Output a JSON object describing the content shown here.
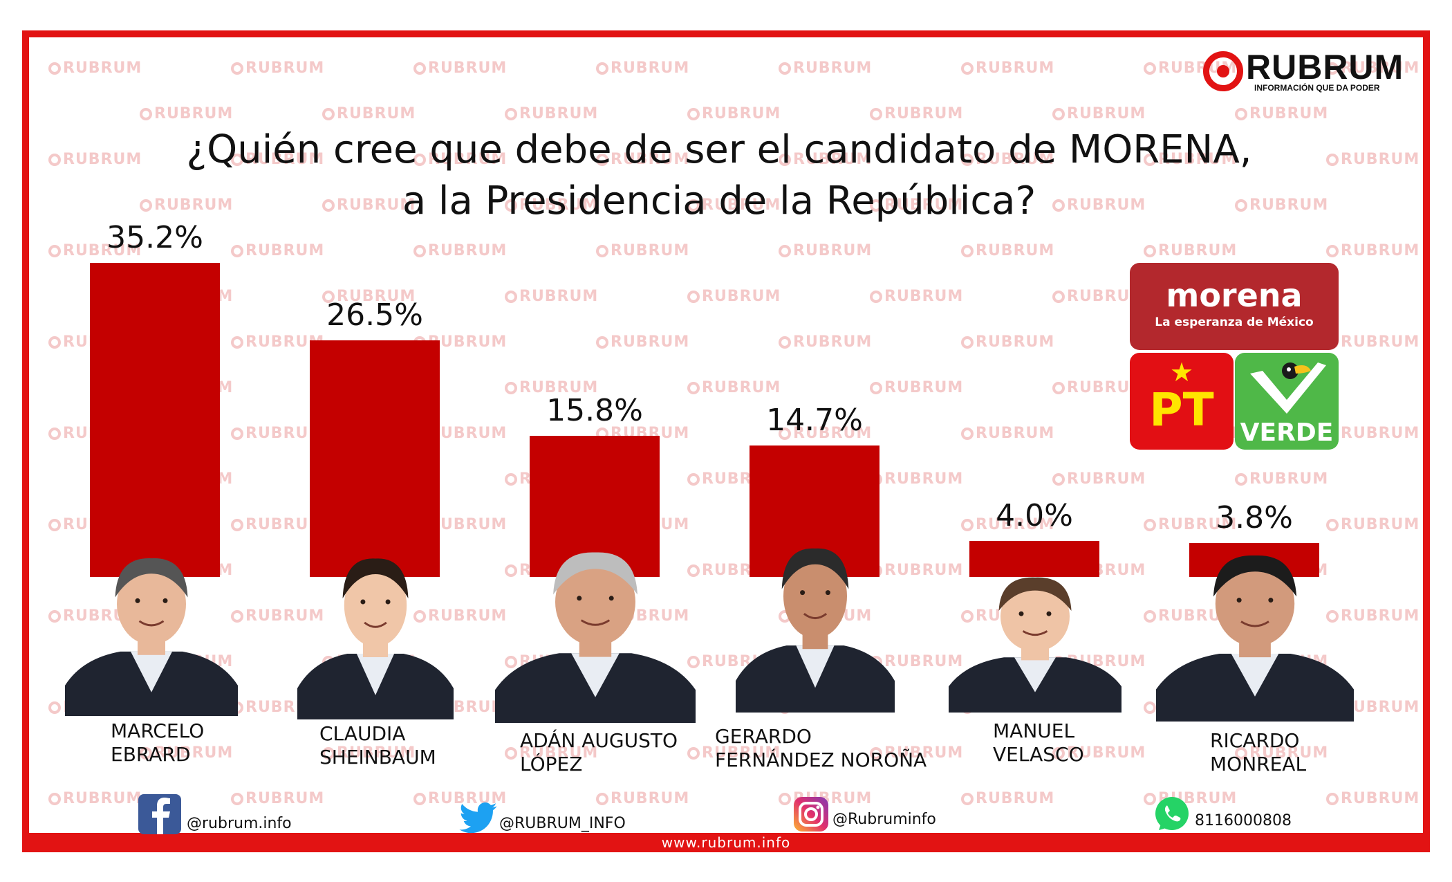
{
  "header": {
    "logo_name": "RUBRUM",
    "logo_tagline": "INFORMACIÓN QUE DA PODER",
    "watermark_text": "RUBRUM"
  },
  "chart_data": {
    "type": "bar",
    "title_lines": [
      "¿Quién cree que debe de ser el candidato de MORENA,",
      "a la Presidencia de la República?"
    ],
    "categories": [
      "MARCELO EBRARD",
      "CLAUDIA SHEINBAUM",
      "ADÁN AUGUSTO LÓPEZ",
      "GERARDO FERNÁNDEZ NOROÑA",
      "MANUEL VELASCO",
      "RICARDO MONREAL"
    ],
    "name_lines": [
      [
        "MARCELO",
        "EBRARD"
      ],
      [
        "CLAUDIA",
        "SHEINBAUM"
      ],
      [
        "ADÁN AUGUSTO",
        "LÓPEZ"
      ],
      [
        "GERARDO",
        "FERNÁNDEZ NOROÑA"
      ],
      [
        "MANUEL",
        "VELASCO"
      ],
      [
        "RICARDO",
        "MONREAL"
      ]
    ],
    "values": [
      35.2,
      26.5,
      15.8,
      14.7,
      4.0,
      3.8
    ],
    "value_labels": [
      "35.2%",
      "26.5%",
      "15.8%",
      "14.7%",
      "4.0%",
      "3.8%"
    ],
    "unit": "%",
    "bar_color": "#c40000",
    "ylim": [
      0,
      35.2
    ]
  },
  "party_logos": {
    "morena_name": "morena",
    "morena_tagline": "La esperanza de México",
    "pt_name": "PT",
    "verde_name": "VERDE"
  },
  "social": {
    "facebook": "@rubrum.info",
    "twitter": "@RUBRUM_INFO",
    "instagram": "@Rubruminfo",
    "whatsapp": "8116000808"
  },
  "footer": {
    "website": "www.rubrum.info"
  },
  "colors": {
    "brand_red": "#e21313",
    "bar_red": "#c40000",
    "morena": "#b3282d",
    "pt": "#e20f14",
    "verde": "#4fb848"
  }
}
